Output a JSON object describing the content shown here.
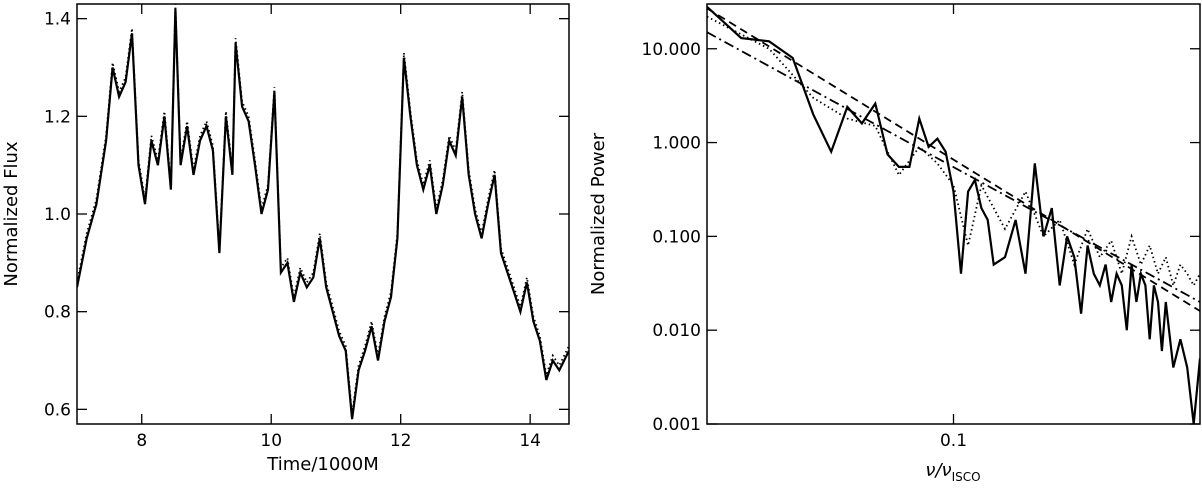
{
  "chart_data": [
    {
      "type": "line",
      "xlabel": "Time/1000M",
      "ylabel": "Normalized Flux",
      "xlim": [
        7.0,
        14.6
      ],
      "ylim": [
        0.57,
        1.43
      ],
      "xticks": [
        8,
        10,
        12,
        14
      ],
      "xtick_labels": [
        "8",
        "10",
        "12",
        "14"
      ],
      "yticks": [
        0.6,
        0.8,
        1.0,
        1.2,
        1.4
      ],
      "ytick_labels": [
        "0.6",
        "0.8",
        "1.0",
        "1.2",
        "1.4"
      ],
      "series": [
        {
          "style": "solid",
          "x": [
            7.0,
            7.15,
            7.3,
            7.45,
            7.55,
            7.65,
            7.75,
            7.85,
            7.95,
            8.05,
            8.15,
            8.25,
            8.35,
            8.45,
            8.52,
            8.6,
            8.7,
            8.8,
            8.9,
            9.0,
            9.1,
            9.2,
            9.3,
            9.4,
            9.45,
            9.55,
            9.65,
            9.75,
            9.85,
            9.95,
            10.05,
            10.15,
            10.25,
            10.35,
            10.45,
            10.55,
            10.65,
            10.75,
            10.85,
            10.95,
            11.05,
            11.15,
            11.25,
            11.35,
            11.45,
            11.55,
            11.65,
            11.75,
            11.85,
            11.95,
            12.05,
            12.15,
            12.25,
            12.35,
            12.45,
            12.55,
            12.65,
            12.75,
            12.85,
            12.95,
            13.05,
            13.15,
            13.25,
            13.35,
            13.45,
            13.55,
            13.65,
            13.75,
            13.85,
            13.95,
            14.05,
            14.15,
            14.25,
            14.35,
            14.45,
            14.6
          ],
          "y": [
            0.85,
            0.95,
            1.02,
            1.15,
            1.3,
            1.24,
            1.27,
            1.37,
            1.1,
            1.02,
            1.15,
            1.1,
            1.2,
            1.05,
            1.42,
            1.1,
            1.18,
            1.08,
            1.15,
            1.18,
            1.13,
            0.92,
            1.2,
            1.08,
            1.35,
            1.22,
            1.19,
            1.1,
            1.0,
            1.05,
            1.25,
            0.88,
            0.9,
            0.82,
            0.88,
            0.85,
            0.87,
            0.95,
            0.85,
            0.8,
            0.75,
            0.72,
            0.58,
            0.68,
            0.72,
            0.77,
            0.7,
            0.78,
            0.83,
            0.95,
            1.32,
            1.2,
            1.1,
            1.05,
            1.1,
            1.0,
            1.06,
            1.15,
            1.12,
            1.24,
            1.08,
            1.0,
            0.95,
            1.02,
            1.08,
            0.92,
            0.88,
            0.84,
            0.8,
            0.86,
            0.78,
            0.74,
            0.66,
            0.7,
            0.68,
            0.72
          ]
        },
        {
          "style": "dotted",
          "x": [
            7.0,
            7.15,
            7.3,
            7.45,
            7.55,
            7.65,
            7.75,
            7.85,
            7.95,
            8.05,
            8.15,
            8.25,
            8.35,
            8.45,
            8.52,
            8.6,
            8.7,
            8.8,
            8.9,
            9.0,
            9.1,
            9.2,
            9.3,
            9.4,
            9.45,
            9.55,
            9.65,
            9.75,
            9.85,
            9.95,
            10.05,
            10.15,
            10.25,
            10.35,
            10.45,
            10.55,
            10.65,
            10.75,
            10.85,
            10.95,
            11.05,
            11.15,
            11.25,
            11.35,
            11.45,
            11.55,
            11.65,
            11.75,
            11.85,
            11.95,
            12.05,
            12.15,
            12.25,
            12.35,
            12.45,
            12.55,
            12.65,
            12.75,
            12.85,
            12.95,
            13.05,
            13.15,
            13.25,
            13.35,
            13.45,
            13.55,
            13.65,
            13.75,
            13.85,
            13.95,
            14.05,
            14.15,
            14.25,
            14.35,
            14.45,
            14.6
          ],
          "y": [
            0.86,
            0.96,
            1.03,
            1.16,
            1.31,
            1.25,
            1.28,
            1.38,
            1.11,
            1.03,
            1.16,
            1.11,
            1.21,
            1.06,
            1.43,
            1.11,
            1.19,
            1.09,
            1.16,
            1.19,
            1.14,
            0.93,
            1.21,
            1.09,
            1.36,
            1.23,
            1.2,
            1.11,
            1.01,
            1.06,
            1.26,
            0.89,
            0.91,
            0.83,
            0.89,
            0.86,
            0.88,
            0.96,
            0.86,
            0.81,
            0.76,
            0.73,
            0.59,
            0.69,
            0.73,
            0.78,
            0.71,
            0.79,
            0.84,
            0.96,
            1.33,
            1.21,
            1.11,
            1.06,
            1.11,
            1.01,
            1.07,
            1.16,
            1.13,
            1.25,
            1.09,
            1.01,
            0.96,
            1.03,
            1.09,
            0.93,
            0.89,
            0.85,
            0.81,
            0.87,
            0.79,
            0.75,
            0.67,
            0.71,
            0.69,
            0.73
          ]
        }
      ]
    },
    {
      "type": "line",
      "xlabel_main": "ν/ν",
      "xlabel_sub": "ISCO",
      "ylabel": "Normalized Power",
      "xscale": "log",
      "yscale": "log",
      "xlim": [
        0.02,
        0.5
      ],
      "ylim": [
        0.001,
        30
      ],
      "xticks": [
        0.1
      ],
      "xtick_labels": [
        "0.1"
      ],
      "yticks": [
        0.001,
        0.01,
        0.1,
        1,
        10
      ],
      "ytick_labels": [
        "0.001",
        "0.010",
        "0.100",
        "1.000",
        "10.000"
      ],
      "series": [
        {
          "style": "solid",
          "x": [
            0.02,
            0.025,
            0.03,
            0.035,
            0.04,
            0.045,
            0.05,
            0.055,
            0.06,
            0.065,
            0.07,
            0.075,
            0.08,
            0.085,
            0.09,
            0.095,
            0.1,
            0.105,
            0.11,
            0.115,
            0.12,
            0.125,
            0.13,
            0.14,
            0.15,
            0.16,
            0.17,
            0.18,
            0.19,
            0.2,
            0.21,
            0.22,
            0.23,
            0.24,
            0.25,
            0.26,
            0.27,
            0.28,
            0.29,
            0.3,
            0.31,
            0.32,
            0.33,
            0.34,
            0.35,
            0.36,
            0.37,
            0.38,
            0.39,
            0.4,
            0.42,
            0.44,
            0.46,
            0.48,
            0.5
          ],
          "y": [
            28,
            13,
            12,
            8,
            2,
            0.8,
            2.4,
            1.6,
            2.6,
            0.75,
            0.55,
            0.55,
            1.8,
            0.9,
            1.1,
            0.8,
            0.3,
            0.04,
            0.3,
            0.4,
            0.2,
            0.15,
            0.05,
            0.06,
            0.15,
            0.04,
            0.6,
            0.1,
            0.2,
            0.03,
            0.1,
            0.06,
            0.015,
            0.08,
            0.04,
            0.03,
            0.05,
            0.02,
            0.04,
            0.03,
            0.01,
            0.05,
            0.02,
            0.04,
            0.03,
            0.008,
            0.03,
            0.02,
            0.006,
            0.02,
            0.004,
            0.008,
            0.004,
            0.001,
            0.005
          ]
        },
        {
          "style": "dotted",
          "x": [
            0.02,
            0.03,
            0.04,
            0.05,
            0.06,
            0.07,
            0.08,
            0.09,
            0.1,
            0.11,
            0.12,
            0.14,
            0.16,
            0.18,
            0.2,
            0.22,
            0.24,
            0.26,
            0.28,
            0.3,
            0.32,
            0.34,
            0.36,
            0.38,
            0.4,
            0.42,
            0.44,
            0.46,
            0.48,
            0.5
          ],
          "y": [
            22,
            10,
            3,
            1.8,
            1.5,
            0.45,
            0.9,
            0.6,
            0.35,
            0.08,
            0.35,
            0.12,
            0.3,
            0.1,
            0.15,
            0.05,
            0.12,
            0.06,
            0.09,
            0.04,
            0.1,
            0.05,
            0.08,
            0.04,
            0.06,
            0.03,
            0.05,
            0.04,
            0.03,
            0.04
          ]
        },
        {
          "style": "dashed",
          "x": [
            0.02,
            0.5
          ],
          "y": [
            27,
            0.016
          ]
        },
        {
          "style": "dashdot",
          "x": [
            0.02,
            0.5
          ],
          "y": [
            15,
            0.02
          ]
        }
      ]
    }
  ]
}
